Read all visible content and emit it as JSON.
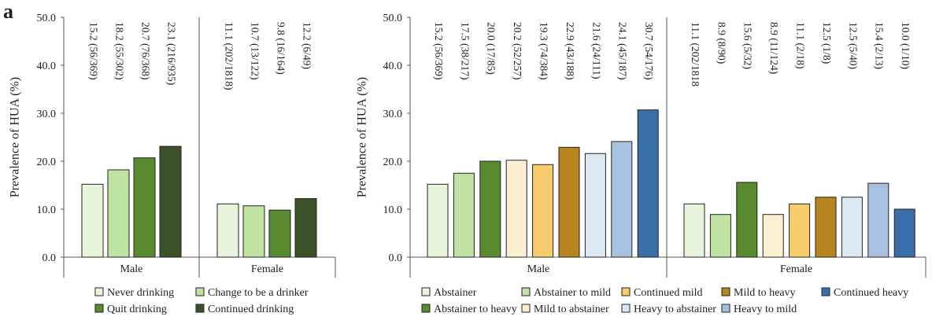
{
  "panel_label": "a",
  "chart_data": [
    {
      "type": "bar",
      "ylabel": "Prevalence of HUA (%)",
      "xlabel": "",
      "ylim": [
        0,
        50
      ],
      "yticks": [
        "0.0",
        "10.0",
        "20.0",
        "30.0",
        "40.0",
        "50.0"
      ],
      "groups": [
        "Male",
        "Female"
      ],
      "series": [
        {
          "name": "Never drinking",
          "color": "#e8f5dc",
          "values": [
            15.2,
            11.1
          ],
          "labels": [
            "15.2 (56/369)",
            "11.1 (202/1818)"
          ]
        },
        {
          "name": "Change to be a drinker",
          "color": "#c0e2a2",
          "values": [
            18.2,
            10.7
          ],
          "labels": [
            "18.2 (55/302)",
            "10.7 (13/122)"
          ]
        },
        {
          "name": "Quit drinking",
          "color": "#5a8a30",
          "values": [
            20.7,
            9.8
          ],
          "labels": [
            "20.7 (76/368)",
            "9.8 (16/164)"
          ]
        },
        {
          "name": "Continued drinking",
          "color": "#3a5228",
          "values": [
            23.1,
            12.2
          ],
          "labels": [
            "23.1 (216/935)",
            "12.2 (6/49)"
          ]
        }
      ],
      "legend_order": [
        0,
        2,
        1,
        3
      ],
      "legend_placement": "bottom",
      "grid": false
    },
    {
      "type": "bar",
      "ylabel": "Prevalence of HUA (%)",
      "xlabel": "",
      "ylim": [
        0,
        50
      ],
      "yticks": [
        "0.0",
        "10.0",
        "20.0",
        "30.0",
        "40.0",
        "50.0"
      ],
      "groups": [
        "Male",
        "Female"
      ],
      "series": [
        {
          "name": "Abstainer",
          "color": "#e8f5dc",
          "values": [
            15.2,
            11.1
          ],
          "labels": [
            "15.2 (56/369)",
            "11.1 (202/1818"
          ]
        },
        {
          "name": "Abstainer to mild",
          "color": "#c0e2a2",
          "values": [
            17.5,
            8.9
          ],
          "labels": [
            "17.5 (38/217)",
            "8.9 (8/90)"
          ]
        },
        {
          "name": "Abstainer to heavy",
          "color": "#5a8a30",
          "values": [
            20.0,
            15.6
          ],
          "labels": [
            "20.0 (17/85)",
            "15.6 (5/32)"
          ]
        },
        {
          "name": "Mild to abstainer",
          "color": "#fcefd2",
          "values": [
            20.2,
            8.9
          ],
          "labels": [
            "20.2 (52/257)",
            "8.9 (11/124)"
          ]
        },
        {
          "name": "Continued mild",
          "color": "#f7cc6c",
          "values": [
            19.3,
            11.1
          ],
          "labels": [
            "19.3 (74/384)",
            "11.1 (2/18)"
          ]
        },
        {
          "name": "Mild to heavy",
          "color": "#b88420",
          "values": [
            22.9,
            12.5
          ],
          "labels": [
            "22.9 (43/188)",
            "12.5 (1/8)"
          ]
        },
        {
          "name": "Heavy to abstainer",
          "color": "#dde8f5",
          "values": [
            21.6,
            12.5
          ],
          "labels": [
            "21.6 (24/111)",
            "12.5 (5/40)"
          ]
        },
        {
          "name": "Heavy to mild",
          "color": "#a6c2e0",
          "values": [
            24.1,
            15.4
          ],
          "labels": [
            "24.1 (45/187)",
            "15.4 (2/13)"
          ]
        },
        {
          "name": "Continued heavy",
          "color": "#3a6ea8",
          "values": [
            30.7,
            10.0
          ],
          "labels": [
            "30.7 (54/176)",
            "10.0 (1/10)"
          ]
        }
      ],
      "legend_order": [
        0,
        2,
        1,
        3,
        4,
        6,
        5,
        7,
        8
      ],
      "legend_placement": "bottom",
      "grid": false
    }
  ]
}
